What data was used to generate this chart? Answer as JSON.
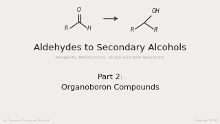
{
  "bg_color": "#f0eeeb",
  "title": "Aldehydes to Secondary Alcohols",
  "subtitle": "Reagents, Mechanisms, Scope and Side Reactions",
  "part_line1": "Part 2:",
  "part_line2": "Organoboron Compounds",
  "footer_left": "by Florencio Zaragoza Dörwald",
  "footer_right": "Copyright 2018",
  "title_color": "#1a1a1a",
  "subtitle_color": "#aaaaaa",
  "part_color": "#1a1a1a",
  "footer_color": "#bbbbbb",
  "arrow_color": "#333333",
  "chem_color": "#222222",
  "title_fontsize": 9.5,
  "subtitle_fontsize": 4.5,
  "part_fontsize": 8.0,
  "footer_fontsize": 3.2,
  "chem_fontsize": 5.5,
  "chem_lw": 0.8
}
